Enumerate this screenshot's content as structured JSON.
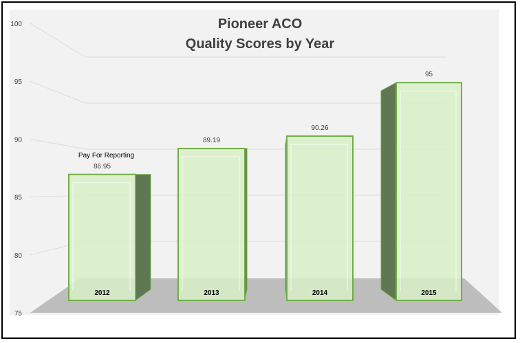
{
  "chart_data": {
    "type": "bar",
    "title": "Pioneer ACO",
    "subtitle": "Quality Scores by Year",
    "categories": [
      "2012",
      "2013",
      "2014",
      "2015"
    ],
    "values": [
      86.95,
      89.19,
      90.26,
      95
    ],
    "data_labels": [
      "86.95",
      "89.19",
      "90.26",
      "95"
    ],
    "annotations": [
      {
        "category": "2012",
        "text": "Pay For Reporting"
      }
    ],
    "ylim": [
      75,
      100
    ],
    "yticks": [
      75,
      80,
      85,
      90,
      95,
      100
    ],
    "xlabel": "",
    "ylabel": "",
    "grid": true,
    "style": "3d",
    "colors": {
      "bar_fill": "#d8f0c8",
      "bar_edge": "#70ad47",
      "bar_side": "#5f7752",
      "floor": "#bdbdbd",
      "plot_bg": "#f2f2f2",
      "text": "#404040"
    }
  }
}
